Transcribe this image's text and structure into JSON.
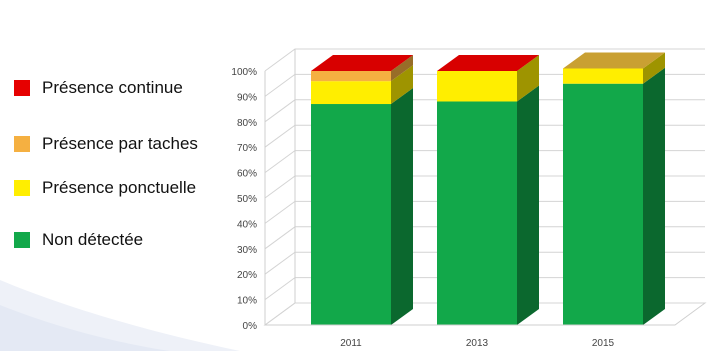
{
  "chart_data": {
    "type": "bar",
    "stacked": true,
    "three_d": true,
    "categories": [
      "2011",
      "2013",
      "2015"
    ],
    "ylim": [
      0,
      100
    ],
    "yticks": [
      "0%",
      "10%",
      "20%",
      "30%",
      "40%",
      "50%",
      "60%",
      "70%",
      "80%",
      "90%",
      "100%"
    ],
    "legend_position": "left",
    "grid": true,
    "series": [
      {
        "name": "Non détectée",
        "color": "#12a84a",
        "values": [
          87,
          88,
          95
        ]
      },
      {
        "name": "Présence ponctuelle",
        "color": "#ffee00",
        "values": [
          9,
          12,
          6
        ]
      },
      {
        "name": "Présence par taches",
        "color": "#f5b041",
        "values": [
          4,
          0,
          0
        ]
      },
      {
        "name": "Présence continue",
        "color": "#e60000",
        "values": [
          0,
          0,
          0
        ]
      }
    ]
  },
  "legend": {
    "order": [
      3,
      2,
      1,
      0
    ]
  }
}
